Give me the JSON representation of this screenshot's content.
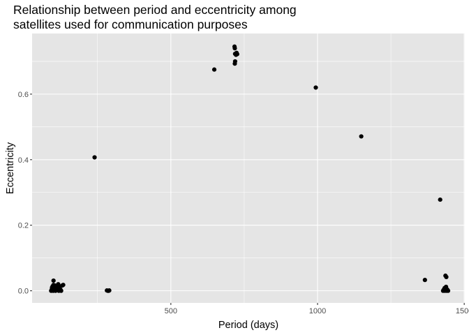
{
  "chart_data": {
    "type": "scatter",
    "title_lines": [
      "Relationship between period and eccentricity among",
      "satellites used for communication purposes"
    ],
    "xlabel": "Period (days)",
    "ylabel": "Eccentricity",
    "xlim": [
      27,
      1502
    ],
    "ylim": [
      -0.037,
      0.785
    ],
    "x_ticks": [
      500,
      1000,
      1500
    ],
    "x_tick_labels": [
      "500",
      "1000",
      "1500"
    ],
    "x_minor_ticks": [
      250,
      750,
      1250
    ],
    "y_ticks": [
      0.0,
      0.2,
      0.4,
      0.6
    ],
    "y_tick_labels": [
      "0.0",
      "0.2",
      "0.4",
      "0.6"
    ],
    "y_minor_ticks": [
      0.1,
      0.3,
      0.5,
      0.7
    ],
    "grid": true,
    "colors": {
      "panel": "#e5e5e5",
      "grid": "#ffffff",
      "points": "#000000",
      "tick_label": "#4d4d4d"
    },
    "points": [
      {
        "x": 92,
        "y": 0.0
      },
      {
        "x": 94,
        "y": 0.004
      },
      {
        "x": 95,
        "y": 0.01
      },
      {
        "x": 96,
        "y": 0.002
      },
      {
        "x": 97,
        "y": 0.014
      },
      {
        "x": 98,
        "y": 0.006
      },
      {
        "x": 99,
        "y": 0.0
      },
      {
        "x": 100,
        "y": 0.031
      },
      {
        "x": 100,
        "y": 0.018
      },
      {
        "x": 101,
        "y": 0.008
      },
      {
        "x": 102,
        "y": 0.001
      },
      {
        "x": 103,
        "y": 0.012
      },
      {
        "x": 104,
        "y": 0.003
      },
      {
        "x": 105,
        "y": 0.016
      },
      {
        "x": 106,
        "y": 0.006
      },
      {
        "x": 107,
        "y": 0.0
      },
      {
        "x": 108,
        "y": 0.009
      },
      {
        "x": 110,
        "y": 0.002
      },
      {
        "x": 112,
        "y": 0.013
      },
      {
        "x": 114,
        "y": 0.004
      },
      {
        "x": 116,
        "y": 0.02
      },
      {
        "x": 118,
        "y": 0.0
      },
      {
        "x": 120,
        "y": 0.007
      },
      {
        "x": 122,
        "y": 0.012
      },
      {
        "x": 124,
        "y": 0.003
      },
      {
        "x": 126,
        "y": 0.0
      },
      {
        "x": 130,
        "y": 0.016
      },
      {
        "x": 133,
        "y": 0.018
      },
      {
        "x": 240,
        "y": 0.407
      },
      {
        "x": 282,
        "y": 0.001
      },
      {
        "x": 285,
        "y": 0.0
      },
      {
        "x": 288,
        "y": 0.0
      },
      {
        "x": 290,
        "y": 0.001
      },
      {
        "x": 648,
        "y": 0.675
      },
      {
        "x": 717,
        "y": 0.745
      },
      {
        "x": 718,
        "y": 0.74
      },
      {
        "x": 719,
        "y": 0.723
      },
      {
        "x": 719,
        "y": 0.7
      },
      {
        "x": 718,
        "y": 0.693
      },
      {
        "x": 722,
        "y": 0.72
      },
      {
        "x": 724,
        "y": 0.726
      },
      {
        "x": 726,
        "y": 0.722
      },
      {
        "x": 994,
        "y": 0.62
      },
      {
        "x": 1149,
        "y": 0.471
      },
      {
        "x": 1366,
        "y": 0.033
      },
      {
        "x": 1418,
        "y": 0.278
      },
      {
        "x": 1428,
        "y": 0.0
      },
      {
        "x": 1430,
        "y": 0.003
      },
      {
        "x": 1432,
        "y": 0.001
      },
      {
        "x": 1433,
        "y": 0.008
      },
      {
        "x": 1434,
        "y": 0.0
      },
      {
        "x": 1436,
        "y": 0.005
      },
      {
        "x": 1436,
        "y": 0.046
      },
      {
        "x": 1437,
        "y": 0.002
      },
      {
        "x": 1438,
        "y": 0.012
      },
      {
        "x": 1439,
        "y": 0.042
      },
      {
        "x": 1440,
        "y": 0.0
      },
      {
        "x": 1442,
        "y": 0.004
      },
      {
        "x": 1443,
        "y": 0.001
      },
      {
        "x": 1445,
        "y": 0.0
      }
    ]
  }
}
